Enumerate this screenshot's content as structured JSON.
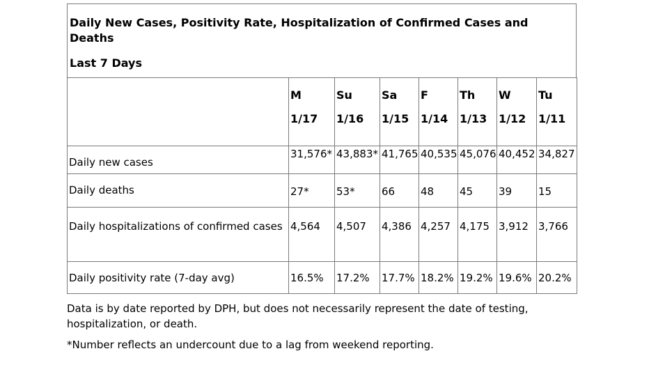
{
  "title": "Daily New Cases, Positivity Rate, Hospitalization of Confirmed Cases and Deaths",
  "subtitle": "Last 7 Days",
  "columns": [
    {
      "day": "M",
      "date": "1/17"
    },
    {
      "day": "Su",
      "date": "1/16"
    },
    {
      "day": "Sa",
      "date": "1/15"
    },
    {
      "day": "F",
      "date": "1/14"
    },
    {
      "day": "Th",
      "date": "1/13"
    },
    {
      "day": "W",
      "date": "1/12"
    },
    {
      "day": "Tu",
      "date": "1/11"
    }
  ],
  "rows": [
    {
      "label": "Daily new cases",
      "values": [
        "31,576*",
        "43,883*",
        "41,765",
        "40,535",
        "45,076",
        "40,452",
        "34,827"
      ]
    },
    {
      "label": "Daily deaths",
      "values": [
        "27*",
        "53*",
        "66",
        "48",
        "45",
        "39",
        "15"
      ]
    },
    {
      "label": "Daily hospitalizations of confirmed cases",
      "values": [
        "4,564",
        "4,507",
        "4,386",
        "4,257",
        "4,175",
        "3,912",
        "3,766"
      ]
    },
    {
      "label": "Daily positivity rate (7-day avg)",
      "values": [
        "16.5%",
        "17.2%",
        "17.7%",
        "18.2%",
        "19.2%",
        "19.6%",
        "20.2%"
      ]
    }
  ],
  "notes": [
    "Data is by date reported by DPH, but does not necessarily represent the date of testing, hospitalization, or death.",
    "*Number reflects an undercount due to a lag from weekend reporting."
  ]
}
